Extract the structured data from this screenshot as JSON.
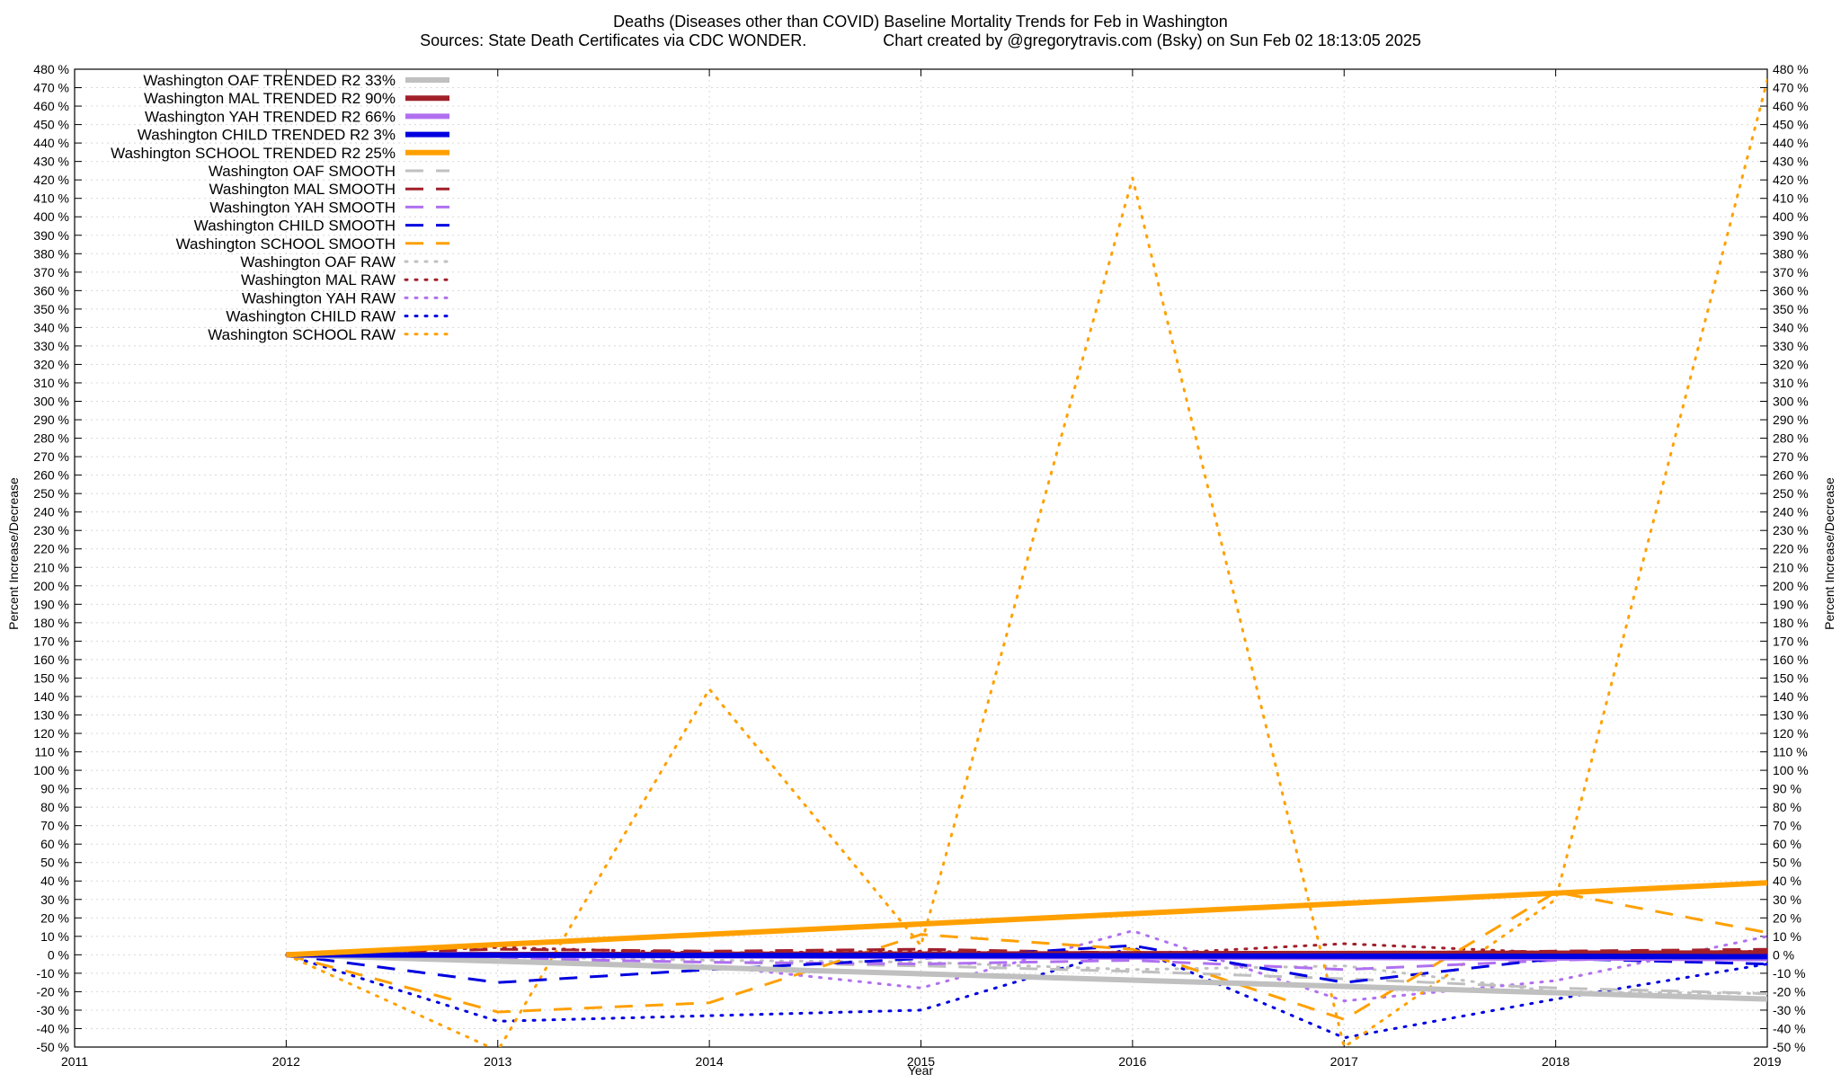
{
  "chart_data": {
    "type": "line",
    "title_line1": "Deaths (Diseases other than COVID)  Baseline Mortality Trends for Feb in Washington",
    "title_line2": "Sources: State Death Certificates via CDC WONDER.                 Chart created by @gregorytravis.com (Bsky) on Sun Feb 02 18:13:05 2025",
    "xlabel": "Year",
    "ylabel": "Percent Increase/Decrease",
    "y2label": "Percent Increase/Decrease",
    "xlim": [
      2011,
      2019
    ],
    "ylim": [
      -50,
      480
    ],
    "x_ticks": [
      2011,
      2012,
      2013,
      2014,
      2015,
      2016,
      2017,
      2018,
      2019
    ],
    "y_ticks": [
      -50,
      -40,
      -30,
      -20,
      -10,
      0,
      10,
      20,
      30,
      40,
      50,
      60,
      70,
      80,
      90,
      100,
      110,
      120,
      130,
      140,
      150,
      160,
      170,
      180,
      190,
      200,
      210,
      220,
      230,
      240,
      250,
      260,
      270,
      280,
      290,
      300,
      310,
      320,
      330,
      340,
      350,
      360,
      370,
      380,
      390,
      400,
      410,
      420,
      430,
      440,
      450,
      460,
      470,
      480
    ],
    "y_tick_suffix": " %",
    "grid": true,
    "legend_position": "top-left",
    "series": [
      {
        "name": "Washington OAF TRENDED R2  33%",
        "style": "trend",
        "color": "#c0c0c0",
        "x": [
          2012,
          2019
        ],
        "y": [
          0,
          -24
        ]
      },
      {
        "name": "Washington MAL TRENDED R2  90%",
        "style": "trend",
        "color": "#a0202a",
        "x": [
          2012,
          2019
        ],
        "y": [
          0,
          1
        ]
      },
      {
        "name": "Washington YAH TRENDED R2  66%",
        "style": "trend",
        "color": "#b070f0",
        "x": [
          2012,
          2019
        ],
        "y": [
          0,
          -2
        ]
      },
      {
        "name": "Washington CHILD TRENDED R2   3%",
        "style": "trend",
        "color": "#0000e0",
        "x": [
          2012,
          2019
        ],
        "y": [
          0,
          -1
        ]
      },
      {
        "name": "Washington SCHOOL TRENDED R2  25%",
        "style": "trend",
        "color": "#ffa000",
        "x": [
          2012,
          2019
        ],
        "y": [
          0,
          39
        ]
      },
      {
        "name": "Washington OAF SMOOTH",
        "style": "smooth",
        "color": "#c0c0c0",
        "x": [
          2012,
          2013,
          2014,
          2015,
          2016,
          2017,
          2018,
          2019
        ],
        "y": [
          0,
          -2,
          -4,
          -6,
          -9,
          -13,
          -18,
          -21
        ]
      },
      {
        "name": "Washington MAL SMOOTH",
        "style": "smooth",
        "color": "#a0202a",
        "x": [
          2012,
          2013,
          2014,
          2015,
          2016,
          2017,
          2018,
          2019
        ],
        "y": [
          0,
          3,
          2,
          3,
          1,
          1,
          2,
          3
        ]
      },
      {
        "name": "Washington YAH SMOOTH",
        "style": "smooth",
        "color": "#b070f0",
        "x": [
          2012,
          2013,
          2014,
          2015,
          2016,
          2017,
          2018,
          2019
        ],
        "y": [
          0,
          -2,
          -4,
          -5,
          -3,
          -8,
          -3,
          0
        ]
      },
      {
        "name": "Washington CHILD SMOOTH",
        "style": "smooth",
        "color": "#0000e0",
        "x": [
          2012,
          2013,
          2014,
          2015,
          2016,
          2017,
          2018,
          2019
        ],
        "y": [
          0,
          -15,
          -8,
          -2,
          5,
          -15,
          -2,
          -5
        ]
      },
      {
        "name": "Washington SCHOOL SMOOTH",
        "style": "smooth",
        "color": "#ffa000",
        "x": [
          2012,
          2013,
          2014,
          2015,
          2016,
          2017,
          2018,
          2019
        ],
        "y": [
          0,
          -31,
          -26,
          11,
          3,
          -35,
          34,
          12
        ]
      },
      {
        "name": "Washington OAF RAW",
        "style": "raw",
        "color": "#c0c0c0",
        "x": [
          2012,
          2013,
          2014,
          2015,
          2016,
          2017,
          2018,
          2019
        ],
        "y": [
          0,
          -1,
          -3,
          -4,
          -8,
          -6,
          -20,
          -21
        ]
      },
      {
        "name": "Washington MAL RAW",
        "style": "raw",
        "color": "#a0202a",
        "x": [
          2012,
          2013,
          2014,
          2015,
          2016,
          2017,
          2018,
          2019
        ],
        "y": [
          0,
          4,
          1,
          2,
          0,
          6,
          1,
          2
        ]
      },
      {
        "name": "Washington YAH RAW",
        "style": "raw",
        "color": "#b070f0",
        "x": [
          2012,
          2013,
          2014,
          2015,
          2016,
          2017,
          2018,
          2019
        ],
        "y": [
          0,
          -4,
          -6,
          -18,
          13,
          -25,
          -14,
          10
        ]
      },
      {
        "name": "Washington CHILD RAW",
        "style": "raw",
        "color": "#0000e0",
        "x": [
          2012,
          2013,
          2014,
          2015,
          2016,
          2017,
          2018,
          2019
        ],
        "y": [
          0,
          -36,
          -33,
          -30,
          4,
          -45,
          -24,
          -5
        ]
      },
      {
        "name": "Washington SCHOOL RAW",
        "style": "raw",
        "color": "#ffa000",
        "x": [
          2012,
          2013,
          2014,
          2015,
          2016,
          2017,
          2018,
          2019
        ],
        "y": [
          0,
          -52,
          144,
          5,
          421,
          -50,
          30,
          474
        ]
      }
    ]
  }
}
